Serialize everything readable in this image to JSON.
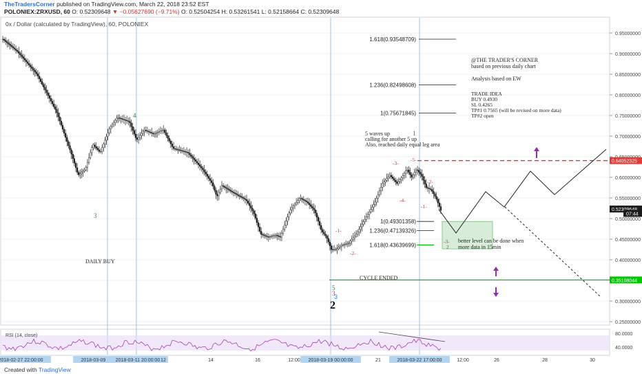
{
  "header": {
    "author": "TheTradersCorner",
    "published": "published on TradingView.com, March 22, 2018 23:52 EST",
    "symbol": "POLONIEX:ZRXUSD, 60",
    "open": "O: 0.52309648",
    "change": "▼ −0.05627690 (−9.71%)",
    "ohlc_rest": "O: 0.52504254 H: 0.53261541 L: 0.52158664 C: 0.52309648"
  },
  "chart_data": {
    "type": "candlestick",
    "title": "0x / Dollar (calculated by TradingView), 60, POLONIEX",
    "ylim": [
      0.24,
      0.98
    ],
    "y_ticks": [
      "0.95000000",
      "0.90000000",
      "0.85000000",
      "0.80000000",
      "0.75000000",
      "0.70000000",
      "0.65000000",
      "0.60000000",
      "0.55000000",
      "0.50000000",
      "0.45000000",
      "0.40000000",
      "0.35000000",
      "0.30000000",
      "0.25000000"
    ],
    "x_ticks": [
      "2018-02-27 22:00:00",
      "2018-03-09 14:00:00",
      "2018-03-11 20:00:00",
      "12",
      "14",
      "16",
      "12:00",
      "2018-03-19 00:00:00",
      "21",
      "2018-03-22 17:00:00",
      "12:00",
      "26",
      "28",
      "30"
    ],
    "price_path": [
      [
        0,
        0.935
      ],
      [
        6,
        0.905
      ],
      [
        14,
        0.85
      ],
      [
        22,
        0.76
      ],
      [
        28,
        0.66
      ],
      [
        31,
        0.605
      ],
      [
        34,
        0.62
      ],
      [
        37,
        0.68
      ],
      [
        40,
        0.66
      ],
      [
        44,
        0.72
      ],
      [
        47,
        0.745
      ],
      [
        52,
        0.735
      ],
      [
        55,
        0.69
      ],
      [
        58,
        0.715
      ],
      [
        62,
        0.705
      ],
      [
        66,
        0.715
      ],
      [
        70,
        0.67
      ],
      [
        76,
        0.66
      ],
      [
        82,
        0.62
      ],
      [
        86,
        0.585
      ],
      [
        88,
        0.552
      ],
      [
        90,
        0.58
      ],
      [
        94,
        0.565
      ],
      [
        100,
        0.545
      ],
      [
        103,
        0.515
      ],
      [
        106,
        0.462
      ],
      [
        109,
        0.455
      ],
      [
        112,
        0.46
      ],
      [
        114,
        0.455
      ],
      [
        118,
        0.52
      ],
      [
        122,
        0.55
      ],
      [
        125,
        0.54
      ],
      [
        128,
        0.52
      ],
      [
        131,
        0.47
      ],
      [
        133,
        0.455
      ],
      [
        135,
        0.425
      ],
      [
        137,
        0.425
      ],
      [
        139,
        0.435
      ],
      [
        142,
        0.44
      ],
      [
        145,
        0.46
      ],
      [
        148,
        0.49
      ],
      [
        150,
        0.51
      ],
      [
        153,
        0.54
      ],
      [
        156,
        0.585
      ],
      [
        159,
        0.605
      ],
      [
        162,
        0.585
      ],
      [
        164,
        0.6
      ],
      [
        166,
        0.62
      ],
      [
        168,
        0.6
      ],
      [
        170,
        0.62
      ],
      [
        172,
        0.605
      ],
      [
        174,
        0.575
      ],
      [
        176,
        0.57
      ],
      [
        178,
        0.55
      ],
      [
        180,
        0.52
      ]
    ],
    "horizontal_levels": [
      {
        "value": 0.64052325,
        "label": "0.64052325",
        "color": "#e53935",
        "style": "dashed"
      },
      {
        "value": 0.35108044,
        "label": "0.35108044",
        "color": "#00c800",
        "style": "solid"
      },
      {
        "value": 0.52309648,
        "label": "0.52309648",
        "color": "#1a1a1a",
        "style": "none"
      }
    ],
    "countdown": "07:44",
    "fib_levels": [
      {
        "label": "1.618(0.93548709)",
        "value": 0.935
      },
      {
        "label": "1.236(0.82498608)",
        "value": 0.824
      },
      {
        "label": "1(0.75671845)",
        "value": 0.756
      },
      {
        "label": "1(0.49301358)",
        "value": 0.493
      },
      {
        "label": "1.236(0.47139326)",
        "value": 0.471
      },
      {
        "label": "1.618(0.43639699)",
        "value": 0.436
      }
    ],
    "projection_path": [
      [
        0.522
      ],
      [
        0.465
      ],
      [
        0.565
      ],
      [
        0.528
      ],
      [
        0.615
      ],
      [
        0.558
      ],
      [
        0.668
      ]
    ],
    "annotations": {
      "corner1": "@THE TRADER'S CORNER",
      "corner2": "based on previous daily chart",
      "ew": "Analysis based on EW",
      "trade1": "TRADE IDEA",
      "trade2": "BUY 0.4930",
      "trade3": "SL 0.4265",
      "trade4": "TP#1 0.7565 (will be revised on more data)",
      "trade5": "TP#2 open",
      "waves1": "5 waves up",
      "waves2": "calling for another 5 up",
      "waves3": "Also, reached daily equal leg area",
      "better1": "better level can be done when",
      "better2": "more data in 15min",
      "daily_buy": "DAILY BUY",
      "cycle": "CYCLE ENDED",
      "w4": "4",
      "w3": "3",
      "w1g": "1",
      "w5g": "5",
      "w2big": "2",
      "w3r": "3",
      "w1r": "-1-",
      "w2r": "-2-",
      "w3r2": "-3-",
      "w4r": "-4-",
      "w5r": "-5-",
      "w2r2": "-2-",
      "w1r2": "-1-",
      "w3r3": "-3-",
      "w2g": "2"
    },
    "rsi": {
      "label": "RSI (14, close)",
      "ticks": [
        "80.0000",
        "40.0000"
      ]
    }
  },
  "footer": {
    "created": "Created with",
    "brand": "TradingView"
  }
}
